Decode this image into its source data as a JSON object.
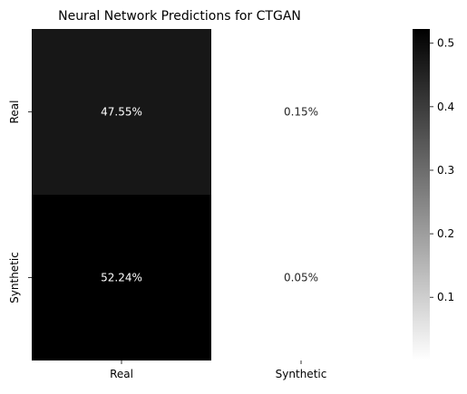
{
  "chart_data": {
    "type": "heatmap",
    "title": "Neural Network Predictions for CTGAN",
    "xlabel": "",
    "ylabel": "",
    "x_categories": [
      "Real",
      "Synthetic"
    ],
    "y_categories": [
      "Real",
      "Synthetic"
    ],
    "values": [
      [
        0.4755,
        0.0015
      ],
      [
        0.5224,
        0.0005
      ]
    ],
    "annotations": [
      [
        "47.55%",
        "0.15%"
      ],
      [
        "52.24%",
        "0.05%"
      ]
    ],
    "colormap": {
      "low": "#ffffff",
      "high": "#000000"
    },
    "colorbar": {
      "range": [
        0.0005,
        0.5224
      ],
      "ticks": [
        0.1,
        0.2,
        0.3,
        0.4,
        0.5
      ],
      "tick_labels": [
        "0.1",
        "0.2",
        "0.3",
        "0.4",
        "0.5"
      ]
    },
    "grid": false,
    "legend": "colorbar-right"
  }
}
